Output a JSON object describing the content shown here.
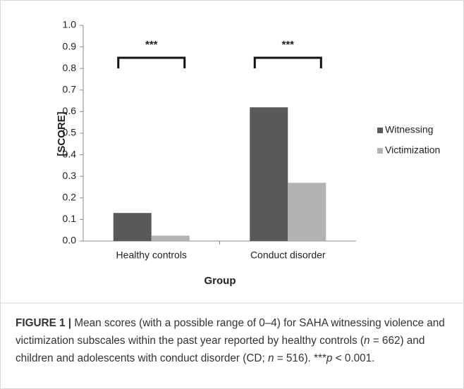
{
  "chart_data": {
    "type": "bar",
    "ylabel": "[SCORE]",
    "xlabel": "Group",
    "categories": [
      "Healthy controls",
      "Conduct disorder"
    ],
    "series": [
      {
        "name": "Witnessing",
        "color": "#595959",
        "values": [
          0.13,
          0.62
        ]
      },
      {
        "name": "Victimization",
        "color": "#b3b3b3",
        "values": [
          0.025,
          0.27
        ]
      }
    ],
    "ylim": [
      0,
      1
    ],
    "yticks": [
      {
        "value": 0,
        "label": "0.0"
      },
      0.1,
      0.2,
      0.3,
      0.4,
      0.5,
      0.6,
      0.7,
      0.8,
      0.9,
      {
        "value": 1,
        "label": "1.0"
      }
    ],
    "annotations": [
      "***",
      "***"
    ],
    "legend": "right"
  },
  "caption": {
    "label": "FIGURE 1 |",
    "segments": [
      "Mean scores (with a possible range of 0–4) for SAHA witnessing violence and victimization subscales within the past year reported by healthy controls (",
      "n",
      " = 662) and children and adolescents with conduct disorder (CD; ",
      "n",
      " = 516). ***",
      "p",
      " < 0.001."
    ]
  }
}
